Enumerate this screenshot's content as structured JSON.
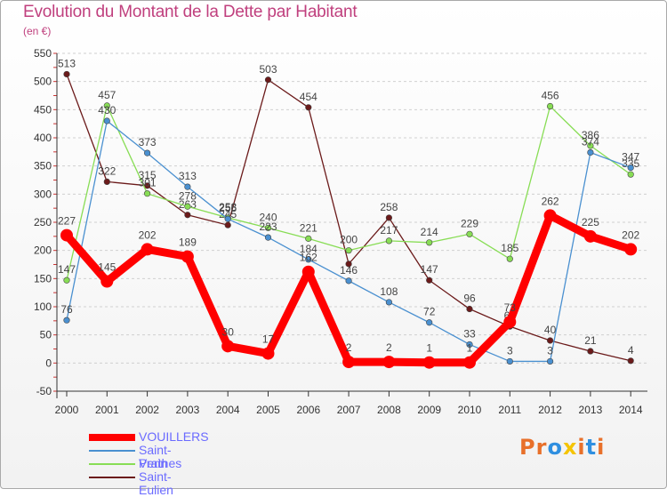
{
  "header": {
    "title": "Evolution du Montant de la Dette par Habitant",
    "subtitle": "(en €)"
  },
  "logo": {
    "text": "Proxiti",
    "colors": [
      "#e8702a",
      "#e8702a",
      "#2f8fe0",
      "#f5c400",
      "#e8702a",
      "#2f8fe0",
      "#e8702a"
    ]
  },
  "chart_data": {
    "type": "line",
    "title": "Evolution du Montant de la Dette par Habitant",
    "subtitle": "(en €)",
    "x": [
      "2000",
      "2001",
      "2002",
      "2003",
      "2004",
      "2005",
      "2006",
      "2007",
      "2008",
      "2009",
      "2010",
      "2011",
      "2012",
      "2013",
      "2014"
    ],
    "ylim": [
      -50,
      550
    ],
    "yticks": [
      -50,
      0,
      50,
      100,
      150,
      200,
      250,
      300,
      350,
      400,
      450,
      500,
      550
    ],
    "grid": "horizontal dashed",
    "legend_position": "bottom-left",
    "series": [
      {
        "name": "Saint-Eulien",
        "color": "#6b1a1a",
        "values": [
          513,
          322,
          315,
          263,
          245,
          503,
          454,
          176,
          258,
          147,
          96,
          65,
          40,
          21,
          4
        ],
        "labels": [
          "513",
          "322",
          "315",
          "263",
          "245",
          "503",
          "454",
          "",
          "258",
          "147",
          "96",
          "65",
          "40",
          "21",
          "4"
        ]
      },
      {
        "name": "Perthes",
        "color": "#88dd55",
        "values": [
          147,
          457,
          301,
          278,
          258,
          240,
          221,
          200,
          217,
          214,
          229,
          185,
          456,
          386,
          335
        ],
        "labels": [
          "147",
          "457",
          "301",
          "278",
          "258",
          "240",
          "221",
          "200",
          "217",
          "214",
          "229",
          "185",
          "456",
          "386",
          "335"
        ]
      },
      {
        "name": "Saint-Vrain",
        "color": "#4a90d0",
        "values": [
          76,
          430,
          373,
          313,
          256,
          223,
          184,
          146,
          108,
          72,
          33,
          3,
          3,
          374,
          347
        ],
        "labels": [
          "76",
          "430",
          "373",
          "313",
          "256",
          "223",
          "184",
          "146",
          "108",
          "72",
          "33",
          "3",
          "3",
          "374",
          "347"
        ]
      },
      {
        "name": "VOUILLERS",
        "color": "#ff0000",
        "values": [
          227,
          145,
          202,
          189,
          30,
          17,
          162,
          2,
          2,
          1,
          1,
          73,
          262,
          225,
          202
        ],
        "labels": [
          "227",
          "145",
          "202",
          "189",
          "30",
          "17",
          "162",
          "2",
          "2",
          "1",
          "1",
          "73",
          "262",
          "225",
          "202"
        ]
      }
    ],
    "legend_order": [
      "VOUILLERS",
      "Saint-Vrain",
      "Perthes",
      "Saint-Eulien"
    ]
  }
}
